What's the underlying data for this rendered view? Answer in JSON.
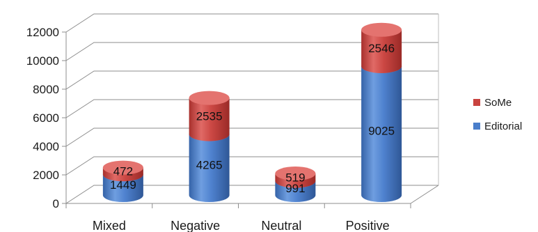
{
  "chart_data": {
    "type": "bar",
    "stacked": true,
    "style": "3d-cylinder",
    "categories": [
      "Mixed",
      "Negative",
      "Neutral",
      "Positive"
    ],
    "series": [
      {
        "name": "Editorial",
        "values": [
          1449,
          4265,
          991,
          9025
        ],
        "color": "#4a7ecb"
      },
      {
        "name": "SoMe",
        "values": [
          472,
          2535,
          519,
          2546
        ],
        "color": "#c9433f"
      }
    ],
    "ylim": [
      0,
      12000
    ],
    "yticks": [
      0,
      2000,
      4000,
      6000,
      8000,
      10000,
      12000
    ],
    "grid": true,
    "legend_position": "right",
    "legend_order": [
      "SoMe",
      "Editorial"
    ]
  }
}
